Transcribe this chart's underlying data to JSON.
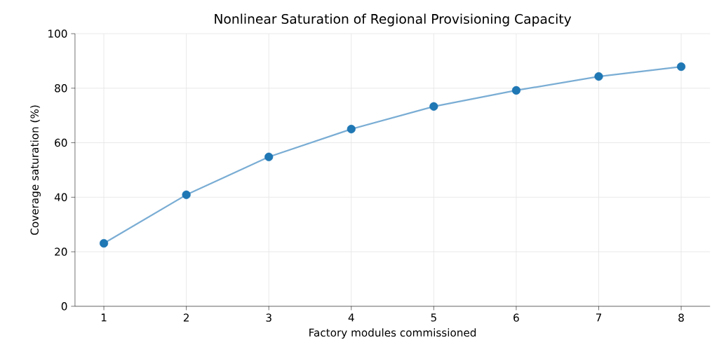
{
  "chart_data": {
    "type": "line",
    "title": "Nonlinear Saturation of Regional Provisioning Capacity",
    "xlabel": "Factory modules commissioned",
    "ylabel": "Coverage saturation (%)",
    "x": [
      1,
      2,
      3,
      4,
      5,
      6,
      7,
      8
    ],
    "series": [
      {
        "color": "#7aadd4",
        "marker": "none",
        "values": [
          23.1,
          40.9,
          54.8,
          65.0,
          73.3,
          79.2,
          84.3,
          87.9
        ]
      },
      {
        "type": "scatter",
        "color": "#1f77b4",
        "marker": "circle",
        "values": [
          23.1,
          40.9,
          54.8,
          65.0,
          73.3,
          79.2,
          84.3,
          87.9
        ]
      }
    ],
    "grid": true,
    "xlim": [
      0.65,
      8.35
    ],
    "ylim": [
      0,
      100
    ],
    "xticks": [
      1,
      2,
      3,
      4,
      5,
      6,
      7,
      8
    ],
    "yticks": [
      0,
      20,
      40,
      60,
      80,
      100
    ]
  }
}
